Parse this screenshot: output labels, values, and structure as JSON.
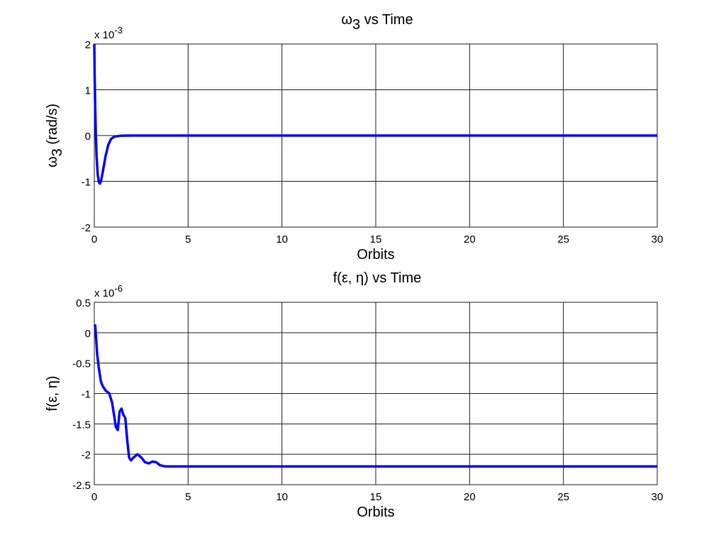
{
  "figure": {
    "background": "#ffffff",
    "line_color": "#0000ff",
    "grid_color": "#000000"
  },
  "chart_data": [
    {
      "type": "line",
      "title": "ω3 vs Time",
      "title_base": "ω",
      "title_sub": "3",
      "title_rest": " vs Time",
      "xlabel": "Orbits",
      "ylabel": "ω3 (rad/s)",
      "ylabel_base": "ω",
      "ylabel_sub": "3",
      "ylabel_rest": " (rad/s)",
      "y_multiplier": "x 10",
      "y_exponent": "-3",
      "xlim": [
        0,
        30
      ],
      "ylim": [
        -2,
        2
      ],
      "xticks": [
        0,
        5,
        10,
        15,
        20,
        25,
        30
      ],
      "yticks": [
        -2,
        -1,
        0,
        1,
        2
      ],
      "grid": true,
      "series": [
        {
          "name": "omega3",
          "color": "#0000ff",
          "x": [
            0,
            0.02,
            0.05,
            0.08,
            0.12,
            0.18,
            0.25,
            0.3,
            0.35,
            0.45,
            0.6,
            0.75,
            0.9,
            1.1,
            1.4,
            2.0,
            5,
            10,
            15,
            20,
            25,
            30
          ],
          "y": [
            2.0,
            1.3,
            0.6,
            0.05,
            -0.45,
            -0.85,
            -1.02,
            -1.05,
            -1.0,
            -0.8,
            -0.45,
            -0.2,
            -0.07,
            -0.02,
            -0.005,
            0,
            0,
            0,
            0,
            0,
            0,
            0
          ]
        }
      ]
    },
    {
      "type": "line",
      "title": "f(ε, η) vs Time",
      "xlabel": "Orbits",
      "ylabel": "f(ε, η)",
      "y_multiplier": "x 10",
      "y_exponent": "-6",
      "xlim": [
        0,
        30
      ],
      "ylim": [
        -2.5,
        0.5
      ],
      "xticks": [
        0,
        5,
        10,
        15,
        20,
        25,
        30
      ],
      "yticks": [
        -2.5,
        -2,
        -1.5,
        -1,
        -0.5,
        0,
        0.5
      ],
      "grid": true,
      "series": [
        {
          "name": "f",
          "color": "#0000ff",
          "x": [
            0,
            0.05,
            0.1,
            0.15,
            0.25,
            0.35,
            0.45,
            0.6,
            0.8,
            0.95,
            1.05,
            1.15,
            1.25,
            1.35,
            1.45,
            1.55,
            1.65,
            1.75,
            1.85,
            1.95,
            2.1,
            2.3,
            2.5,
            2.7,
            2.9,
            3.1,
            3.3,
            3.5,
            3.8,
            5,
            10,
            15,
            20,
            25,
            30
          ],
          "y": [
            0.1,
            0.12,
            -0.1,
            -0.35,
            -0.6,
            -0.8,
            -0.88,
            -0.95,
            -1.0,
            -1.15,
            -1.35,
            -1.55,
            -1.6,
            -1.3,
            -1.25,
            -1.35,
            -1.4,
            -1.75,
            -2.05,
            -2.1,
            -2.05,
            -2.0,
            -2.05,
            -2.13,
            -2.15,
            -2.12,
            -2.13,
            -2.18,
            -2.2,
            -2.2,
            -2.2,
            -2.2,
            -2.2,
            -2.2,
            -2.2
          ]
        }
      ]
    }
  ]
}
